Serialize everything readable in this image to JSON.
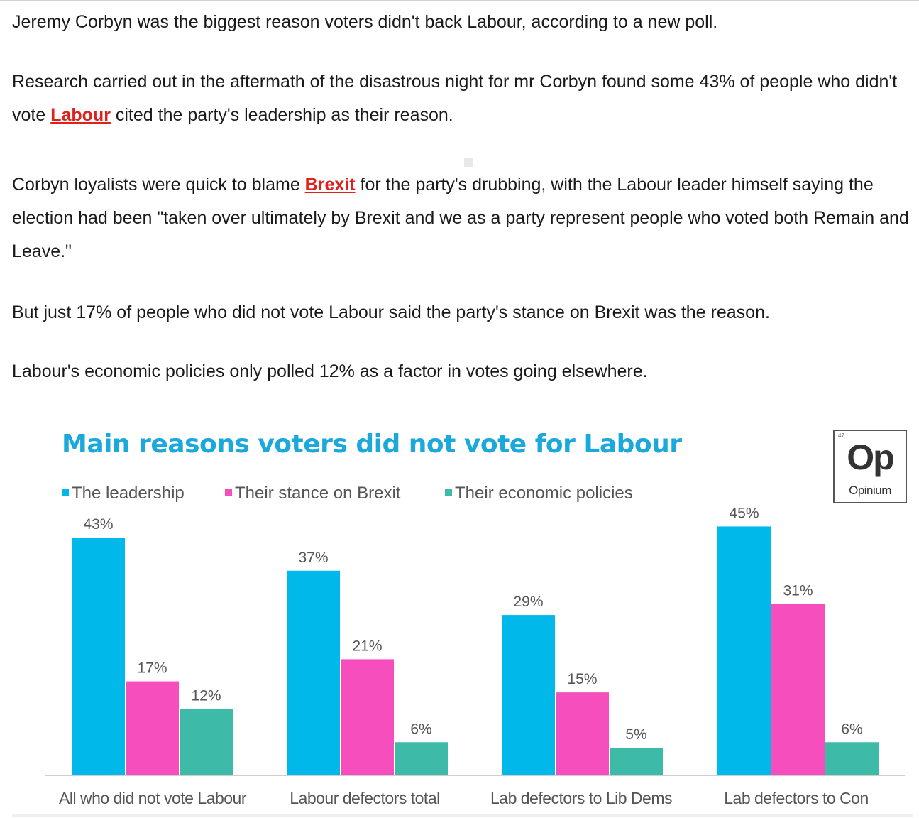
{
  "article": {
    "paragraphs": [
      {
        "text": "Jeremy Corbyn was the biggest reason voters didn't back Labour, according to a new poll."
      },
      {
        "before": "Research carried out in the aftermath of the disastrous night for mr Corbyn found some 43% of people who didn't vote ",
        "link": "Labour",
        "after": " cited the party's leadership as their reason."
      },
      {
        "before": "Corbyn loyalists were quick to blame ",
        "link": "Brexit",
        "after": " for the party's drubbing, with the Labour leader himself saying the election had been \"taken over ultimately by Brexit and we as a party represent people who voted both Remain and Leave.\""
      },
      {
        "text": "But just 17% of people who did not vote Labour said the party's stance on Brexit was the reason."
      },
      {
        "text": "Labour's economic policies only polled 12% as a factor in votes going elsewhere."
      }
    ],
    "link_color": "#e0201a"
  },
  "logo": {
    "mark": "Op",
    "name": "Opinium",
    "superscript": "47"
  },
  "chart_data": {
    "type": "bar",
    "title": "Main reasons voters did not vote for Labour",
    "xlabel": "",
    "ylabel": "",
    "ylim": [
      0,
      50
    ],
    "grid": false,
    "legend_placement": "top-left",
    "categories": [
      "All who did not vote Labour",
      "Labour defectors total",
      "Lab defectors to Lib Dems",
      "Lab defectors to Con"
    ],
    "series": [
      {
        "name": "The leadership",
        "color": "#00b8ea",
        "values": [
          43,
          37,
          29,
          45
        ],
        "labels": [
          "43%",
          "37%",
          "29%",
          "45%"
        ]
      },
      {
        "name": "Their stance on Brexit",
        "color": "#f64ebc",
        "values": [
          17,
          21,
          15,
          31
        ],
        "labels": [
          "17%",
          "21%",
          "15%",
          "31%"
        ]
      },
      {
        "name": "Their economic policies",
        "color": "#3dbba8",
        "values": [
          12,
          6,
          5,
          6
        ],
        "labels": [
          "12%",
          "6%",
          "5%",
          "6%"
        ]
      }
    ]
  }
}
